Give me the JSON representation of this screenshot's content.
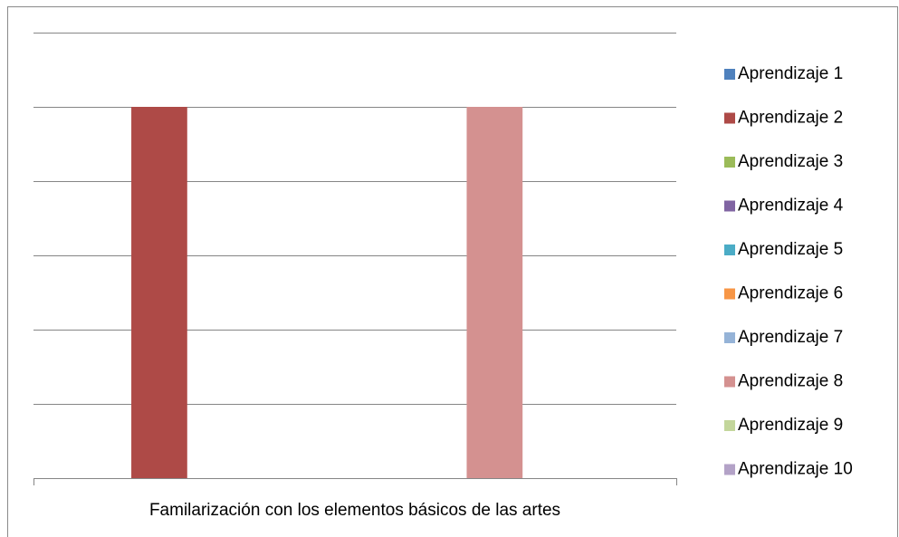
{
  "chart_data": {
    "type": "bar",
    "categories": [
      "Familarización con los elementos básicos de las artes"
    ],
    "series": [
      {
        "name": "Aprendizaje 1",
        "color": "#4f81bd",
        "values": [
          0
        ]
      },
      {
        "name": "Aprendizaje 2",
        "color": "#ae4a47",
        "values": [
          5
        ]
      },
      {
        "name": "Aprendizaje 3",
        "color": "#9bbb59",
        "values": [
          0
        ]
      },
      {
        "name": "Aprendizaje 4",
        "color": "#8064a2",
        "values": [
          0
        ]
      },
      {
        "name": "Aprendizaje 5",
        "color": "#4bacc6",
        "values": [
          0
        ]
      },
      {
        "name": "Aprendizaje 6",
        "color": "#f79646",
        "values": [
          0
        ]
      },
      {
        "name": "Aprendizaje 7",
        "color": "#95b3d7",
        "values": [
          0
        ]
      },
      {
        "name": "Aprendizaje 8",
        "color": "#d49190",
        "values": [
          5
        ]
      },
      {
        "name": "Aprendizaje 9",
        "color": "#c3d69b",
        "values": [
          0
        ]
      },
      {
        "name": "Aprendizaje 10",
        "color": "#b3a2c7",
        "values": [
          0
        ]
      }
    ],
    "ylim": [
      0,
      6
    ],
    "yticks": [
      0,
      1,
      2,
      3,
      4,
      5,
      6
    ],
    "grid": true,
    "legend": "right"
  }
}
